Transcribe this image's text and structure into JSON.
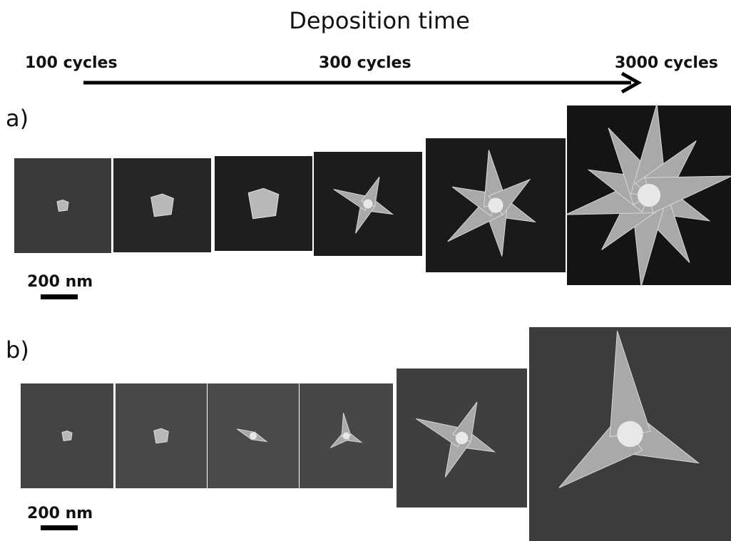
{
  "header": {
    "title": "Deposition time",
    "stages": [
      "100 cycles",
      "300 cycles",
      "3000 cycles"
    ]
  },
  "panels": [
    {
      "label": "a)",
      "scale_bar": "200 nm"
    },
    {
      "label": "b)",
      "scale_bar": "200 nm"
    }
  ]
}
